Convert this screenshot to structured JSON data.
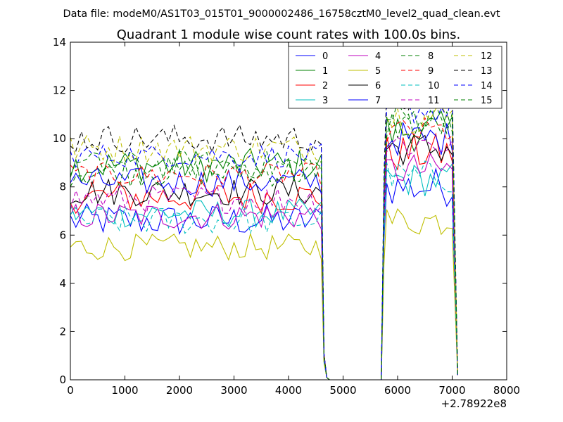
{
  "header": {
    "data_file": "Data file: modeM0/AS1T03_015T01_9000002486_16758cztM0_level2_quad_clean.evt"
  },
  "chart_data": {
    "type": "line",
    "title": "Quadrant 1 module wise count rates with 100.0s bins.",
    "xlabel": "",
    "ylabel": "",
    "x_offset_label": "+2.78922e8",
    "xlim": [
      0,
      8000
    ],
    "ylim": [
      0,
      14
    ],
    "x_ticks": [
      0,
      1000,
      2000,
      3000,
      4000,
      5000,
      6000,
      7000,
      8000
    ],
    "y_ticks": [
      0,
      2,
      4,
      6,
      8,
      10,
      12,
      14
    ],
    "bin_width_s": 100,
    "segments": [
      {
        "start": 0,
        "plateau_end": 4600,
        "drop": [
          4650,
          0.9,
          4700,
          0.1,
          4750,
          0
        ]
      },
      {
        "gap_end": 5700,
        "rise": [
          5750,
          7.0,
          5800
        ],
        "end": 7100,
        "last_val": 0.2
      }
    ],
    "legend": {
      "location": "top-right",
      "columns": 4
    },
    "series": [
      {
        "name": "0",
        "color": "#0000ff",
        "style": "solid",
        "level": 6.6,
        "level2": 8.0,
        "noise": 0.35
      },
      {
        "name": "1",
        "color": "#008000",
        "style": "solid",
        "level": 8.9,
        "level2": 10.3,
        "noise": 0.35
      },
      {
        "name": "2",
        "color": "#ff0000",
        "style": "solid",
        "level": 7.6,
        "level2": 9.4,
        "noise": 0.35
      },
      {
        "name": "3",
        "color": "#00bfbf",
        "style": "solid",
        "level": 6.9,
        "level2": 8.3,
        "noise": 0.3
      },
      {
        "name": "4",
        "color": "#bf00bf",
        "style": "solid",
        "level": 6.8,
        "level2": 8.7,
        "noise": 0.3
      },
      {
        "name": "5",
        "color": "#bfbf00",
        "style": "solid",
        "level": 5.5,
        "level2": 6.6,
        "noise": 0.28
      },
      {
        "name": "6",
        "color": "#000000",
        "style": "solid",
        "level": 7.8,
        "level2": 9.6,
        "noise": 0.3
      },
      {
        "name": "7",
        "color": "#0000ff",
        "style": "solid",
        "level": 8.2,
        "level2": 10.0,
        "noise": 0.3
      },
      {
        "name": "8",
        "color": "#008000",
        "style": "dashed",
        "level": 8.6,
        "level2": 10.6,
        "noise": 0.3
      },
      {
        "name": "9",
        "color": "#ff0000",
        "style": "dashed",
        "level": 8.5,
        "level2": 10.3,
        "noise": 0.25
      },
      {
        "name": "10",
        "color": "#00bfbf",
        "style": "dashed",
        "level": 6.6,
        "level2": 8.4,
        "noise": 0.3
      },
      {
        "name": "11",
        "color": "#bf00bf",
        "style": "dashed",
        "level": 7.5,
        "level2": 9.8,
        "noise": 0.3
      },
      {
        "name": "12",
        "color": "#bfbf00",
        "style": "dashed",
        "level": 9.6,
        "level2": 10.9,
        "noise": 0.3
      },
      {
        "name": "13",
        "color": "#000000",
        "style": "dashed",
        "level": 10.0,
        "level2": 11.7,
        "noise": 0.3
      },
      {
        "name": "14",
        "color": "#0000ff",
        "style": "dashed",
        "level": 9.3,
        "level2": 11.2,
        "noise": 0.25
      },
      {
        "name": "15",
        "color": "#008000",
        "style": "dashed",
        "level": 8.9,
        "level2": 10.9,
        "noise": 0.3
      }
    ]
  }
}
